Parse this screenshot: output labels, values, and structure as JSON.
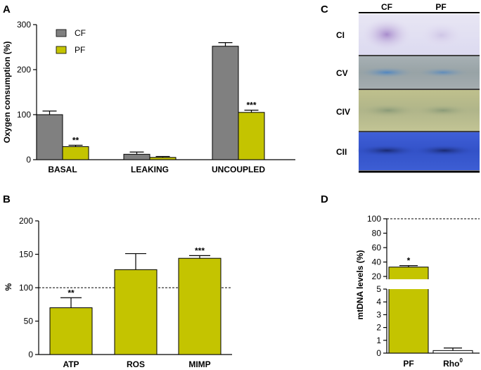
{
  "colors": {
    "cf": "#808080",
    "pf": "#c4c400",
    "axis": "#000000"
  },
  "panels": {
    "a": "A",
    "b": "B",
    "c": "C",
    "d": "D"
  },
  "chart_data": [
    {
      "id": "A",
      "type": "bar",
      "ylabel": "Oxygen consumption (%)",
      "ylim": [
        0,
        300
      ],
      "yticks": [
        0,
        100,
        200,
        300
      ],
      "categories": [
        "BASAL",
        "LEAKING",
        "UNCOUPLED"
      ],
      "legend": [
        {
          "name": "CF",
          "color": "#808080"
        },
        {
          "name": "PF",
          "color": "#c4c400"
        }
      ],
      "legend_position": "top-left",
      "series": [
        {
          "name": "CF",
          "values": [
            100,
            12,
            252
          ],
          "errors": [
            8,
            5,
            8
          ]
        },
        {
          "name": "PF",
          "values": [
            29,
            5,
            105
          ],
          "errors": [
            3,
            2,
            5
          ]
        }
      ],
      "annotations": [
        {
          "category": "BASAL",
          "series": "PF",
          "text": "**"
        },
        {
          "category": "UNCOUPLED",
          "series": "PF",
          "text": "***"
        }
      ]
    },
    {
      "id": "B",
      "type": "bar",
      "ylabel": "%",
      "ylim": [
        0,
        200
      ],
      "yticks": [
        0,
        50,
        100,
        150,
        200
      ],
      "reference_line": 100,
      "categories": [
        "ATP",
        "ROS",
        "MIMP"
      ],
      "values": [
        70,
        127,
        144
      ],
      "errors": [
        15,
        24,
        4
      ],
      "annotations": [
        "**",
        "",
        "***"
      ]
    },
    {
      "id": "D",
      "type": "bar",
      "ylabel": "mtDNA levels (%)",
      "broken_axis": true,
      "upper_yticks": [
        20,
        40,
        60,
        80,
        100
      ],
      "lower_yticks": [
        0,
        1,
        2,
        3,
        4,
        5
      ],
      "reference_line": 100,
      "categories": [
        "PF",
        "Rho"
      ],
      "category_superscripts": [
        "",
        "0"
      ],
      "values": [
        33,
        0.2
      ],
      "errors": [
        2,
        0.2
      ],
      "annotations": [
        "*",
        ""
      ]
    }
  ],
  "blot": {
    "columns": [
      "CF",
      "PF"
    ],
    "rows": [
      "CI",
      "CV",
      "CIV",
      "CII"
    ]
  }
}
